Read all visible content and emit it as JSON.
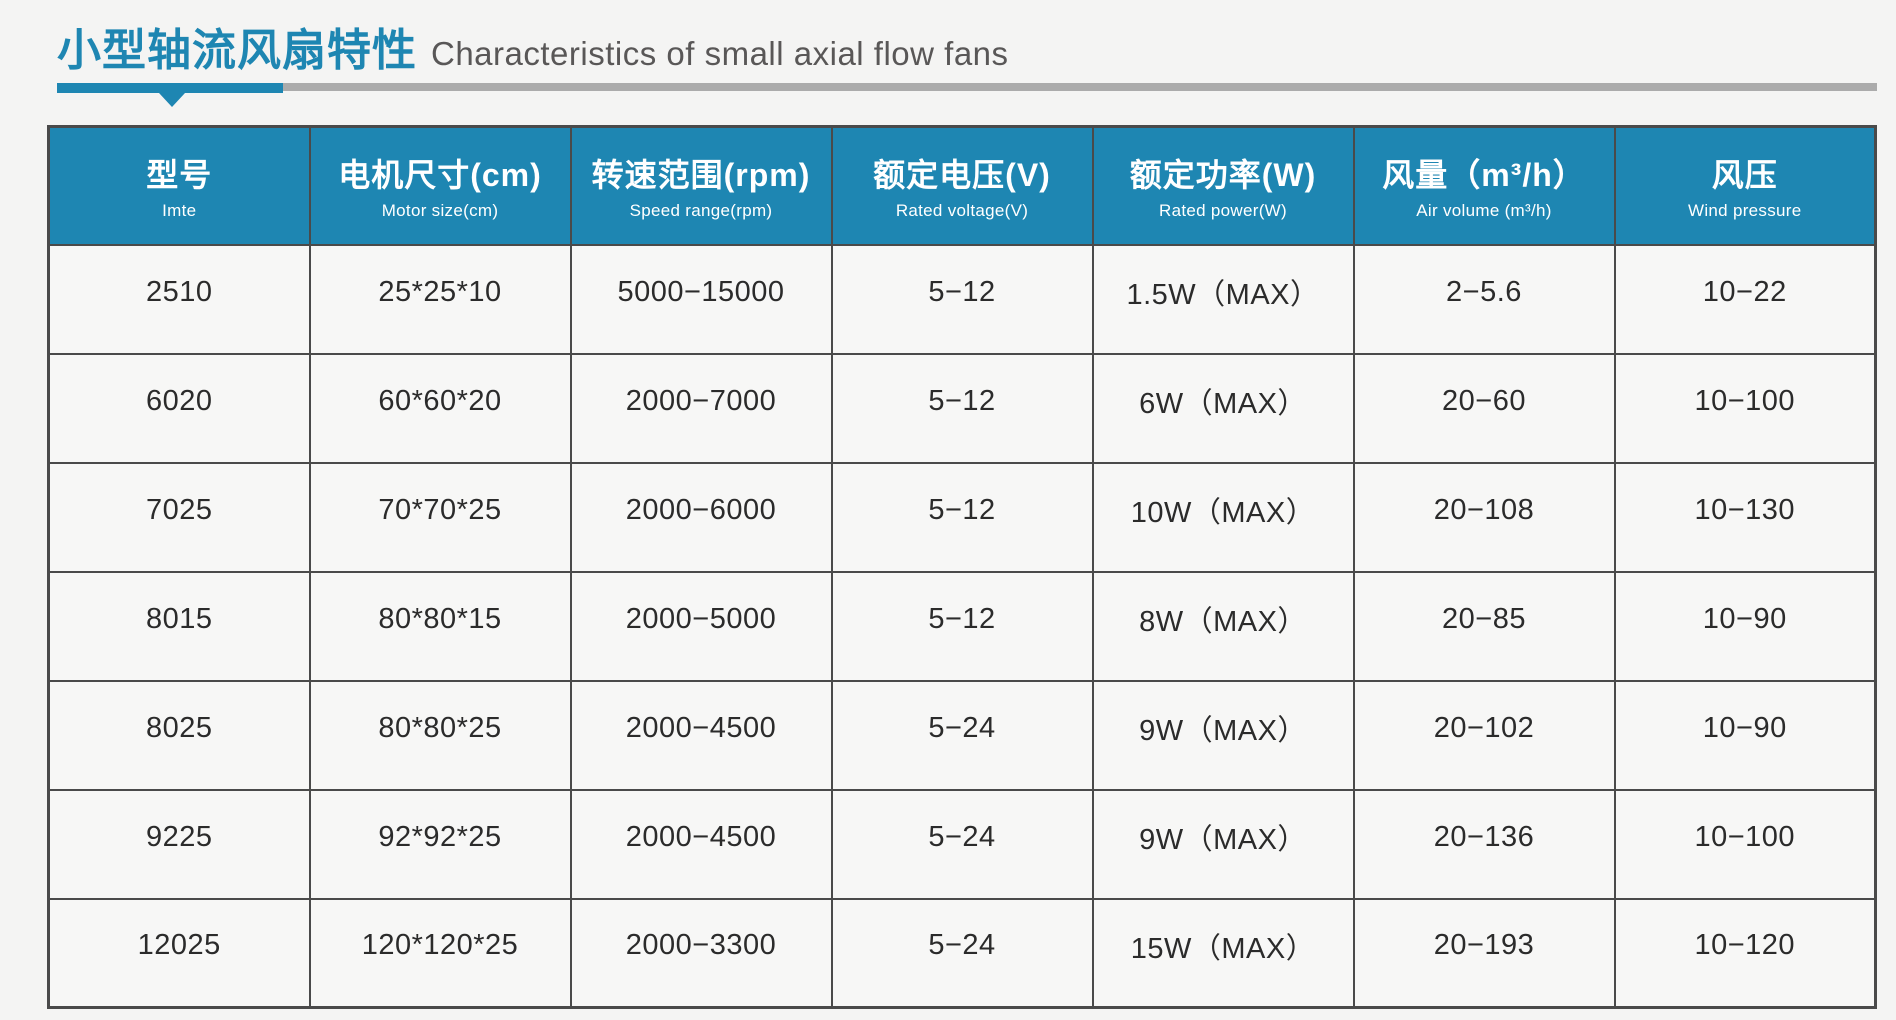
{
  "page": {
    "title_zh": "小型轴流风扇特性",
    "title_en": "Characteristics of small axial flow fans",
    "accent_color": "#1e86b2",
    "divider_gray_color": "#ababab",
    "background_color": "#f4f4f3"
  },
  "table": {
    "header_background": "#1e86b2",
    "header_text_color": "#ffffff",
    "columns": [
      {
        "zh": "型号",
        "en": "Imte"
      },
      {
        "zh": "电机尺寸(cm)",
        "en": "Motor size(cm)"
      },
      {
        "zh": "转速范围(rpm)",
        "en": "Speed range(rpm)"
      },
      {
        "zh": "额定电压(V)",
        "en": "Rated voltage(V)"
      },
      {
        "zh": "额定功率(W)",
        "en": "Rated power(W)"
      },
      {
        "zh": "风量（m³/h）",
        "en": "Air volume (m³/h)"
      },
      {
        "zh": "风压",
        "en": "Wind pressure"
      }
    ],
    "rows": [
      [
        "2510",
        "25*25*10",
        "5000−15000",
        "5−12",
        "1.5W（MAX）",
        "2−5.6",
        "10−22"
      ],
      [
        "6020",
        "60*60*20",
        "2000−7000",
        "5−12",
        "6W（MAX）",
        "20−60",
        "10−100"
      ],
      [
        "7025",
        "70*70*25",
        "2000−6000",
        "5−12",
        "10W（MAX）",
        "20−108",
        "10−130"
      ],
      [
        "8015",
        "80*80*15",
        "2000−5000",
        "5−12",
        "8W（MAX）",
        "20−85",
        "10−90"
      ],
      [
        "8025",
        "80*80*25",
        "2000−4500",
        "5−24",
        "9W（MAX）",
        "20−102",
        "10−90"
      ],
      [
        "9225",
        "92*92*25",
        "2000−4500",
        "5−24",
        "9W（MAX）",
        "20−136",
        "10−100"
      ],
      [
        "12025",
        "120*120*25",
        "2000−3300",
        "5−24",
        "15W（MAX）",
        "20−193",
        "10−120"
      ]
    ]
  }
}
